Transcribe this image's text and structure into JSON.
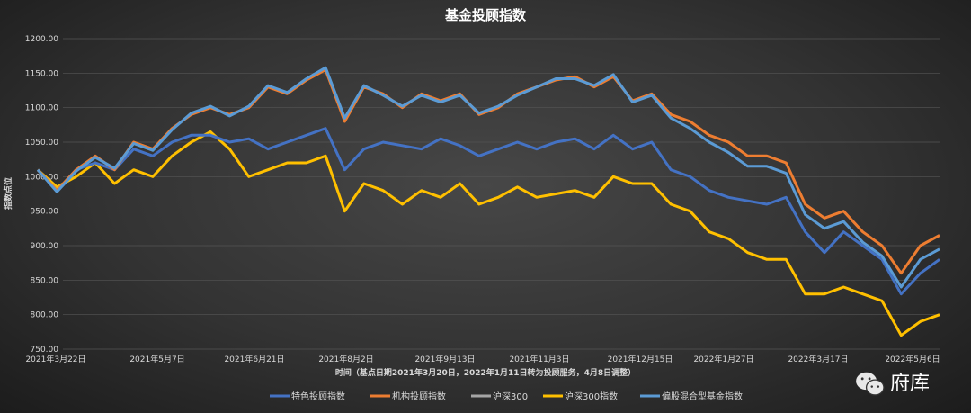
{
  "chart_data": {
    "type": "line",
    "title": "基金投顾指数",
    "xlabel": "时间（基点日期2021年3月20日，2022年1月11日转为投顾服务，4月8日调整）",
    "ylabel": "指数点位",
    "ylim": [
      750,
      1200
    ],
    "yticks": [
      "1200.00",
      "1150.00",
      "1100.00",
      "1050.00",
      "1000.00",
      "950.00",
      "900.00",
      "850.00",
      "800.00",
      "750.00"
    ],
    "xticks": [
      "2021年3月22日",
      "2021年5月7日",
      "2021年6月21日",
      "2021年8月2日",
      "2021年9月13日",
      "2021年11月3日",
      "2021年12月15日",
      "2022年1月27日",
      "2022年3月17日",
      "2022年5月6日"
    ],
    "grid": true,
    "legend_position": "bottom",
    "series": [
      {
        "name": "特色投顾指数",
        "color": "#4472c4",
        "values": [
          1010,
          980,
          1010,
          1020,
          1010,
          1040,
          1030,
          1050,
          1060,
          1060,
          1050,
          1055,
          1040,
          1050,
          1060,
          1070,
          1010,
          1040,
          1050,
          1045,
          1040,
          1055,
          1045,
          1030,
          1040,
          1050,
          1040,
          1050,
          1055,
          1040,
          1060,
          1040,
          1050,
          1010,
          1000,
          980,
          970,
          965,
          960,
          970,
          920,
          890,
          920,
          900,
          880,
          830,
          860,
          880
        ]
      },
      {
        "name": "机构投顾指数",
        "color": "#ed7d31",
        "values": [
          1010,
          980,
          1010,
          1030,
          1010,
          1050,
          1040,
          1070,
          1090,
          1100,
          1090,
          1100,
          1130,
          1120,
          1140,
          1155,
          1080,
          1130,
          1120,
          1100,
          1120,
          1110,
          1120,
          1090,
          1100,
          1120,
          1130,
          1140,
          1145,
          1130,
          1145,
          1110,
          1120,
          1090,
          1080,
          1060,
          1050,
          1030,
          1030,
          1020,
          960,
          940,
          950,
          920,
          900,
          860,
          900,
          915
        ]
      },
      {
        "name": "沪深300",
        "color": "#a5a5a5",
        "values": []
      },
      {
        "name": "沪深300指数",
        "color": "#ffc000",
        "values": [
          1010,
          985,
          1000,
          1020,
          990,
          1010,
          1000,
          1030,
          1050,
          1065,
          1040,
          1000,
          1010,
          1020,
          1020,
          1030,
          950,
          990,
          980,
          960,
          980,
          970,
          990,
          960,
          970,
          985,
          970,
          975,
          980,
          970,
          1000,
          990,
          990,
          960,
          950,
          920,
          910,
          890,
          880,
          880,
          830,
          830,
          840,
          830,
          820,
          770,
          790,
          800
        ]
      },
      {
        "name": "偏股混合型基金指数",
        "color": "#5b9bd5",
        "values": [
          1010,
          978,
          1008,
          1028,
          1012,
          1048,
          1038,
          1068,
          1092,
          1102,
          1088,
          1102,
          1132,
          1122,
          1142,
          1158,
          1085,
          1132,
          1118,
          1102,
          1118,
          1108,
          1118,
          1092,
          1102,
          1118,
          1130,
          1142,
          1142,
          1132,
          1148,
          1108,
          1118,
          1085,
          1070,
          1050,
          1035,
          1015,
          1015,
          1005,
          945,
          925,
          935,
          905,
          885,
          840,
          880,
          895
        ]
      }
    ]
  },
  "watermark": "府库"
}
